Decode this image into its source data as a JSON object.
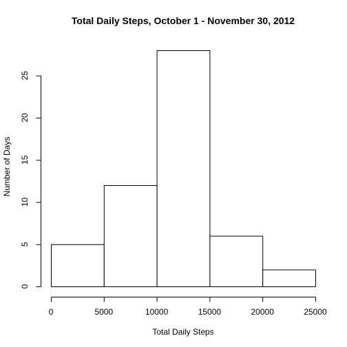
{
  "chart_data": {
    "type": "bar",
    "title": "Total Daily Steps, October 1 - November 30, 2012",
    "xlabel": "Total Daily Steps",
    "ylabel": "Number of Days",
    "bins": [
      {
        "start": 0,
        "end": 5000,
        "count": 5
      },
      {
        "start": 5000,
        "end": 10000,
        "count": 12
      },
      {
        "start": 10000,
        "end": 15000,
        "count": 28
      },
      {
        "start": 15000,
        "end": 20000,
        "count": 6
      },
      {
        "start": 20000,
        "end": 25000,
        "count": 2
      }
    ],
    "xlim": [
      0,
      25000
    ],
    "ylim": [
      0,
      28
    ],
    "x_ticks": [
      0,
      5000,
      10000,
      15000,
      20000,
      25000
    ],
    "y_ticks": [
      0,
      5,
      10,
      15,
      20,
      25
    ],
    "grid": false,
    "bar_fill": "#ffffff",
    "bar_stroke": "#000000"
  }
}
